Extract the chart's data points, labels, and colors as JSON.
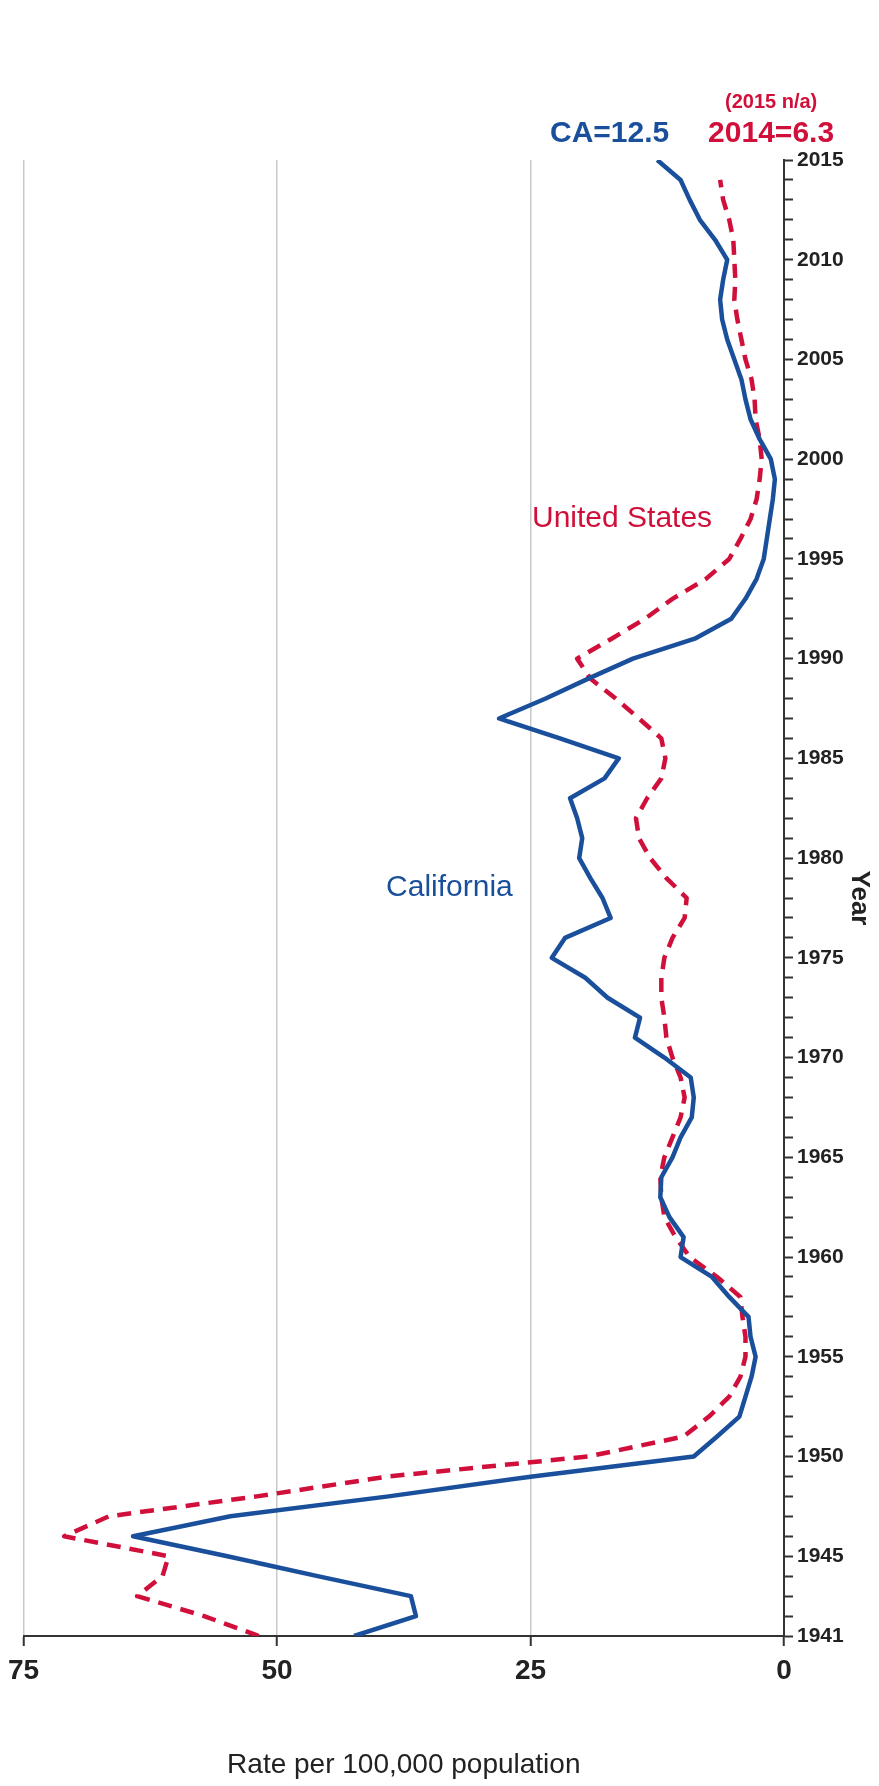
{
  "chart_data": {
    "type": "line",
    "xlabel": "Rate per 100,000 population",
    "ylabel": "Year",
    "series": [
      {
        "name": "California",
        "color": "#1a4f9c",
        "line_style": "solid",
        "x": [
          42.4,
          36.3,
          36.8,
          46,
          54.9,
          64.2,
          54.6,
          39,
          24.8,
          8.9,
          6.6,
          4.4,
          3.8,
          3.2,
          2.8,
          3.3,
          3.5,
          5.4,
          7.1,
          10.2,
          9.9,
          11.3,
          12.2,
          12.1,
          11,
          10.2,
          9.1,
          8.9,
          9.2,
          11.8,
          14.7,
          14.2,
          17.4,
          19.6,
          22.9,
          21.6,
          17.1,
          17.9,
          19.1,
          20.2,
          19.9,
          20.4,
          21.1,
          17.7,
          16.3,
          22.1,
          28.1,
          23.5,
          19.3,
          14.9,
          8.8,
          5.2,
          3.8,
          2.7,
          2,
          1.7,
          1.4,
          1.1,
          0.9,
          1.3,
          2.4,
          3.3,
          3.8,
          4.2,
          4.9,
          5.6,
          6.1,
          6.3,
          6,
          5.6,
          6.8,
          8.3,
          9.3,
          10.2,
          12.5
        ],
        "values": [
          1941,
          1942,
          1943,
          1944,
          1945,
          1946,
          1947,
          1948,
          1949,
          1950,
          1951,
          1952,
          1953,
          1954,
          1955,
          1956,
          1957,
          1958,
          1959,
          1960,
          1961,
          1962,
          1963,
          1964,
          1965,
          1966,
          1967,
          1968,
          1969,
          1970,
          1971,
          1972,
          1973,
          1974,
          1975,
          1976,
          1977,
          1978,
          1979,
          1980,
          1981,
          1982,
          1983,
          1984,
          1985,
          1986,
          1987,
          1988,
          1989,
          1990,
          1991,
          1992,
          1993,
          1994,
          1995,
          1996,
          1997,
          1998,
          1999,
          2000,
          2001,
          2002,
          2003,
          2004,
          2005,
          2006,
          2007,
          2008,
          2009,
          2010,
          2011,
          2012,
          2013,
          2014,
          2015
        ]
      },
      {
        "name": "United States",
        "color": "#d0103a",
        "line_style": "dashed",
        "x": [
          51.8,
          57.2,
          63.8,
          61.3,
          60.7,
          71,
          66.6,
          52,
          39,
          19.3,
          9.9,
          7.4,
          5.4,
          4.3,
          3.8,
          3.8,
          4.1,
          4.3,
          6.6,
          9.3,
          10.7,
          11.8,
          12.1,
          12.2,
          11.8,
          11,
          10.2,
          9.8,
          10.2,
          11,
          11.6,
          11.8,
          12.1,
          12.1,
          11.8,
          11,
          9.8,
          9.6,
          11.6,
          13.2,
          14.3,
          14.6,
          13.5,
          12.1,
          11.7,
          12.1,
          14.3,
          16.6,
          19.1,
          20.4,
          17,
          13.7,
          11,
          7.7,
          5.4,
          4.3,
          3.3,
          2.7,
          2.4,
          2.2,
          2.4,
          2.8,
          2.9,
          3.2,
          3.8,
          4.2,
          4.6,
          4.9,
          4.8,
          4.9,
          5,
          5.4,
          6,
          6.3
        ],
        "values": [
          1941,
          1942,
          1943,
          1944,
          1945,
          1946,
          1947,
          1948,
          1949,
          1950,
          1951,
          1952,
          1953,
          1954,
          1955,
          1956,
          1957,
          1958,
          1959,
          1960,
          1961,
          1962,
          1963,
          1964,
          1965,
          1966,
          1967,
          1968,
          1969,
          1970,
          1971,
          1972,
          1973,
          1974,
          1975,
          1976,
          1977,
          1978,
          1979,
          1980,
          1981,
          1982,
          1983,
          1984,
          1985,
          1986,
          1987,
          1988,
          1989,
          1990,
          1991,
          1992,
          1993,
          1994,
          1995,
          1996,
          1997,
          1998,
          1999,
          2000,
          2001,
          2002,
          2003,
          2004,
          2005,
          2006,
          2007,
          2008,
          2009,
          2010,
          2011,
          2012,
          2013,
          2014
        ]
      }
    ],
    "xlim": [
      75,
      0
    ],
    "xticks": [
      75,
      50,
      25,
      0
    ],
    "ylim": [
      1941,
      2015
    ],
    "yticks": [
      1941,
      {
        "value": 1942,
        "label": null
      },
      {
        "value": 1943,
        "label": null
      },
      {
        "value": 1944,
        "label": null
      },
      1945,
      {
        "value": 1946,
        "label": null
      },
      {
        "value": 1947,
        "label": null
      },
      {
        "value": 1948,
        "label": null
      },
      {
        "value": 1949,
        "label": null
      },
      1950,
      {
        "value": 1951,
        "label": null
      },
      {
        "value": 1952,
        "label": null
      },
      {
        "value": 1953,
        "label": null
      },
      {
        "value": 1954,
        "label": null
      },
      1955,
      {
        "value": 1956,
        "label": null
      },
      {
        "value": 1957,
        "label": null
      },
      {
        "value": 1958,
        "label": null
      },
      {
        "value": 1959,
        "label": null
      },
      1960,
      {
        "value": 1961,
        "label": null
      },
      {
        "value": 1962,
        "label": null
      },
      {
        "value": 1963,
        "label": null
      },
      {
        "value": 1964,
        "label": null
      },
      1965,
      {
        "value": 1966,
        "label": null
      },
      {
        "value": 1967,
        "label": null
      },
      {
        "value": 1968,
        "label": null
      },
      {
        "value": 1969,
        "label": null
      },
      1970,
      {
        "value": 1971,
        "label": null
      },
      {
        "value": 1972,
        "label": null
      },
      {
        "value": 1973,
        "label": null
      },
      {
        "value": 1974,
        "label": null
      },
      1975,
      {
        "value": 1976,
        "label": null
      },
      {
        "value": 1977,
        "label": null
      },
      {
        "value": 1978,
        "label": null
      },
      {
        "value": 1979,
        "label": null
      },
      1980,
      {
        "value": 1981,
        "label": null
      },
      {
        "value": 1982,
        "label": null
      },
      {
        "value": 1983,
        "label": null
      },
      {
        "value": 1984,
        "label": null
      },
      1985,
      {
        "value": 1986,
        "label": null
      },
      {
        "value": 1987,
        "label": null
      },
      {
        "value": 1988,
        "label": null
      },
      {
        "value": 1989,
        "label": null
      },
      1990,
      {
        "value": 1991,
        "label": null
      },
      {
        "value": 1992,
        "label": null
      },
      {
        "value": 1993,
        "label": null
      },
      {
        "value": 1994,
        "label": null
      },
      1995,
      {
        "value": 1996,
        "label": null
      },
      {
        "value": 1997,
        "label": null
      },
      {
        "value": 1998,
        "label": null
      },
      {
        "value": 1999,
        "label": null
      },
      2000,
      {
        "value": 2001,
        "label": null
      },
      {
        "value": 2002,
        "label": null
      },
      {
        "value": 2003,
        "label": null
      },
      {
        "value": 2004,
        "label": null
      },
      2005,
      {
        "value": 2006,
        "label": null
      },
      {
        "value": 2007,
        "label": null
      },
      {
        "value": 2008,
        "label": null
      },
      {
        "value": 2009,
        "label": null
      },
      2010,
      {
        "value": 2011,
        "label": null
      },
      {
        "value": 2012,
        "label": null
      },
      {
        "value": 2013,
        "label": null
      },
      {
        "value": 2014,
        "label": null
      },
      2015
    ],
    "grid": "x",
    "legend": false,
    "marker": "none",
    "annotations": [
      {
        "text": "CA=12.5",
        "x": 12.5,
        "y": 2015
      },
      {
        "text": "2014=6.3",
        "x": 6.3,
        "y": 2014
      },
      "(2015 n/a)"
    ]
  }
}
